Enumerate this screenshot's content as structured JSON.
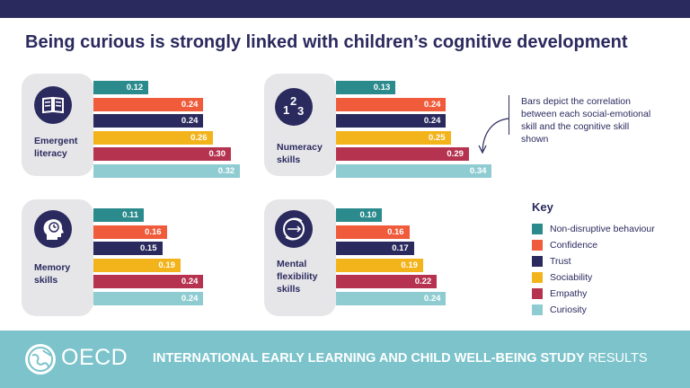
{
  "title": "Being curious is strongly linked with children’s cognitive development",
  "annotation": "Bars depict the correlation between each social-emotional skill and the cognitive skill shown",
  "key": {
    "title": "Key",
    "items": [
      {
        "label": "Non-disruptive behaviour",
        "color": "#2a8a8c"
      },
      {
        "label": "Confidence",
        "color": "#ef5b3b"
      },
      {
        "label": "Trust",
        "color": "#2b2a5e"
      },
      {
        "label": "Sociability",
        "color": "#f3b31b"
      },
      {
        "label": "Empathy",
        "color": "#b63350"
      },
      {
        "label": "Curiosity",
        "color": "#8fccd2"
      }
    ]
  },
  "footer": {
    "logo_text": "OECD",
    "study_bold": "INTERNATIONAL EARLY LEARNING AND CHILD WELL-BEING STUDY",
    "study_light": "RESULTS"
  },
  "chart_data": [
    {
      "type": "bar",
      "title": "Emergent literacy",
      "icon": "book-icon",
      "categories": [
        "Non-disruptive behaviour",
        "Confidence",
        "Trust",
        "Sociability",
        "Empathy",
        "Curiosity"
      ],
      "values": [
        0.12,
        0.24,
        0.24,
        0.26,
        0.3,
        0.32
      ],
      "labels": [
        "0.12",
        "0.24",
        "0.24",
        "0.26",
        "0.30",
        "0.32"
      ]
    },
    {
      "type": "bar",
      "title": "Numeracy skills",
      "icon": "numbers-icon",
      "categories": [
        "Non-disruptive behaviour",
        "Confidence",
        "Trust",
        "Sociability",
        "Empathy",
        "Curiosity"
      ],
      "values": [
        0.13,
        0.24,
        0.24,
        0.25,
        0.29,
        0.34
      ],
      "labels": [
        "0.13",
        "0.24",
        "0.24",
        "0.25",
        "0.29",
        "0.34"
      ]
    },
    {
      "type": "bar",
      "title": "Memory skills",
      "icon": "head-icon",
      "categories": [
        "Non-disruptive behaviour",
        "Confidence",
        "Trust",
        "Sociability",
        "Empathy",
        "Curiosity"
      ],
      "values": [
        0.11,
        0.16,
        0.15,
        0.19,
        0.24,
        0.24
      ],
      "labels": [
        "0.11",
        "0.16",
        "0.15",
        "0.19",
        "0.24",
        "0.24"
      ]
    },
    {
      "type": "bar",
      "title": "Mental flexibility skills",
      "icon": "brain-cycle-icon",
      "categories": [
        "Non-disruptive behaviour",
        "Confidence",
        "Trust",
        "Sociability",
        "Empathy",
        "Curiosity"
      ],
      "values": [
        0.1,
        0.16,
        0.17,
        0.19,
        0.22,
        0.24
      ],
      "labels": [
        "0.10",
        "0.16",
        "0.17",
        "0.19",
        "0.22",
        "0.24"
      ]
    }
  ]
}
